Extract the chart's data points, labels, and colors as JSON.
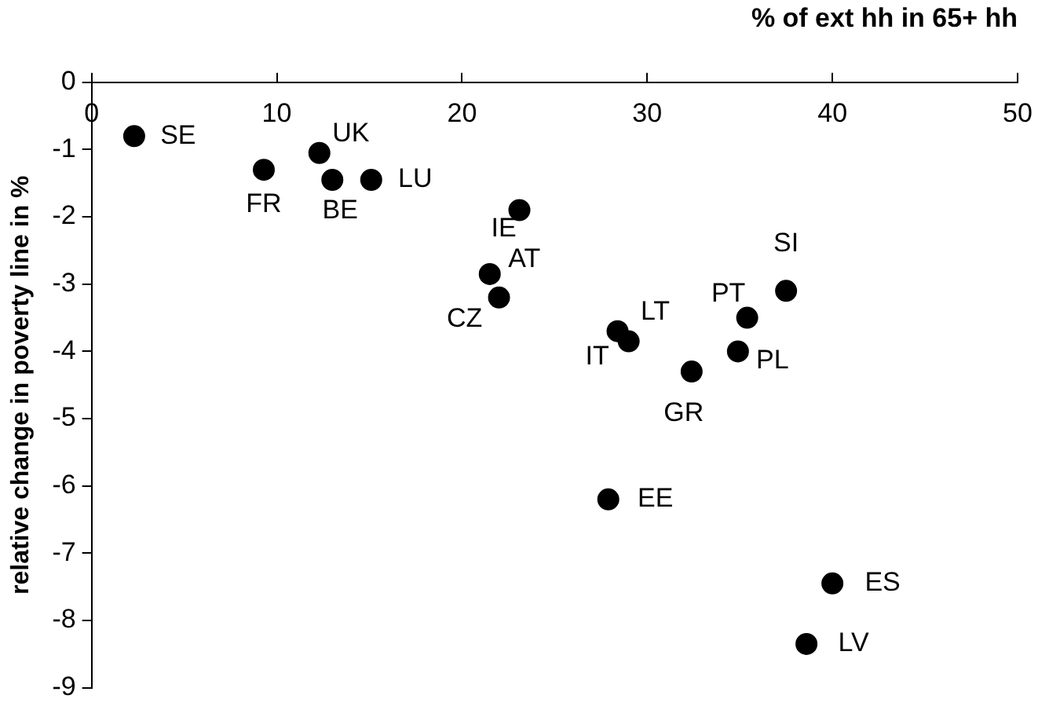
{
  "chart_data": {
    "type": "scatter",
    "xlabel": "% of ext hh in 65+ hh",
    "ylabel": "relative change in poverty line in %",
    "x": [
      2.3,
      9.3,
      12.3,
      13.0,
      15.1,
      23.1,
      21.5,
      22.0,
      28.4,
      29.0,
      32.4,
      34.9,
      35.4,
      37.5,
      27.9,
      40.0,
      38.6
    ],
    "values": [
      -0.8,
      -1.3,
      -1.05,
      -1.45,
      -1.45,
      -1.9,
      -2.85,
      -3.2,
      -3.7,
      -3.85,
      -4.3,
      -4.0,
      -3.5,
      -3.1,
      -6.2,
      -7.45,
      -8.35
    ],
    "color": "#000000",
    "marker": "circle",
    "grid": false,
    "legend": false,
    "xlim": [
      0,
      50
    ],
    "xticks": [
      0,
      10,
      20,
      30,
      40,
      50
    ],
    "ylim": [
      -9,
      0
    ],
    "yticks": [
      0,
      -1,
      -2,
      -3,
      -4,
      -5,
      -6,
      -7,
      -8,
      -9
    ],
    "annotations": [
      {
        "text": "SE",
        "x": 2.3,
        "y": -0.8
      },
      {
        "text": "FR",
        "x": 9.3,
        "y": -1.3
      },
      {
        "text": "UK",
        "x": 12.3,
        "y": -1.05
      },
      {
        "text": "BE",
        "x": 13.0,
        "y": -1.45
      },
      {
        "text": "LU",
        "x": 15.1,
        "y": -1.45
      },
      {
        "text": "IE",
        "x": 23.1,
        "y": -1.9
      },
      {
        "text": "AT",
        "x": 21.5,
        "y": -2.85
      },
      {
        "text": "CZ",
        "x": 22.0,
        "y": -3.2
      },
      {
        "text": "LT",
        "x": 28.4,
        "y": -3.7
      },
      {
        "text": "IT",
        "x": 29.0,
        "y": -3.85
      },
      {
        "text": "GR",
        "x": 32.4,
        "y": -4.3
      },
      {
        "text": "PL",
        "x": 34.9,
        "y": -4.0
      },
      {
        "text": "PT",
        "x": 35.4,
        "y": -3.5
      },
      {
        "text": "SI",
        "x": 37.5,
        "y": -3.1
      },
      {
        "text": "EE",
        "x": 27.9,
        "y": -6.2
      },
      {
        "text": "ES",
        "x": 40.0,
        "y": -7.45
      },
      {
        "text": "LV",
        "x": 38.6,
        "y": -8.35
      }
    ]
  }
}
